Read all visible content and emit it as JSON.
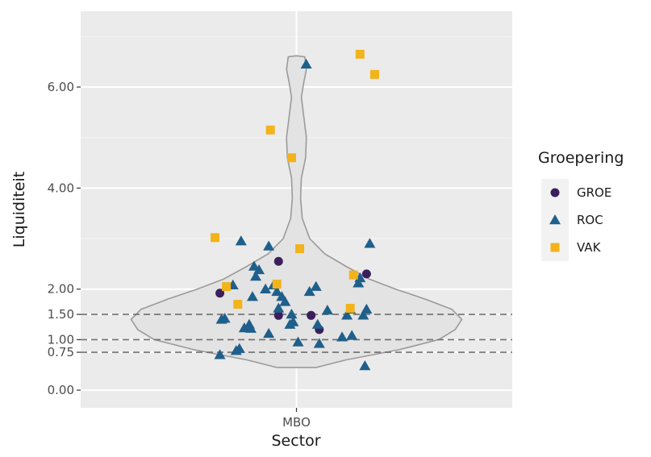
{
  "chart_data": {
    "type": "violin-jitter",
    "xlabel": "Sector",
    "ylabel": "Liquiditeit",
    "categories": [
      "MBO"
    ],
    "ylim": [
      -0.35,
      7.5
    ],
    "y_ticks": [
      {
        "value": 0.0,
        "label": "0.00"
      },
      {
        "value": 0.75,
        "label": "0.75"
      },
      {
        "value": 1.0,
        "label": "1.00"
      },
      {
        "value": 1.5,
        "label": "1.50"
      },
      {
        "value": 2.0,
        "label": "2.00"
      },
      {
        "value": 4.0,
        "label": "4.00"
      },
      {
        "value": 6.0,
        "label": "6.00"
      }
    ],
    "reference_lines": [
      0.75,
      1.0,
      1.5
    ],
    "grid": true,
    "legend": {
      "title": "Groepering",
      "placement": "right",
      "entries": [
        {
          "label": "GROE",
          "shape": "circle",
          "color": "#3b1f5c"
        },
        {
          "label": "ROC",
          "shape": "triangle",
          "color": "#1f5f8b"
        },
        {
          "label": "VAK",
          "shape": "square",
          "color": "#f2b31b"
        }
      ]
    },
    "violin": [
      {
        "y": 0.45,
        "w": 0.12
      },
      {
        "y": 0.6,
        "w": 0.3
      },
      {
        "y": 0.8,
        "w": 0.62
      },
      {
        "y": 1.0,
        "w": 0.86
      },
      {
        "y": 1.2,
        "w": 0.96
      },
      {
        "y": 1.4,
        "w": 1.0
      },
      {
        "y": 1.6,
        "w": 0.94
      },
      {
        "y": 1.8,
        "w": 0.78
      },
      {
        "y": 2.0,
        "w": 0.6
      },
      {
        "y": 2.2,
        "w": 0.44
      },
      {
        "y": 2.45,
        "w": 0.3
      },
      {
        "y": 2.7,
        "w": 0.17
      },
      {
        "y": 3.0,
        "w": 0.08
      },
      {
        "y": 3.4,
        "w": 0.035
      },
      {
        "y": 3.8,
        "w": 0.025
      },
      {
        "y": 4.2,
        "w": 0.03
      },
      {
        "y": 4.6,
        "w": 0.055
      },
      {
        "y": 5.0,
        "w": 0.06
      },
      {
        "y": 5.4,
        "w": 0.045
      },
      {
        "y": 5.8,
        "w": 0.03
      },
      {
        "y": 6.1,
        "w": 0.045
      },
      {
        "y": 6.35,
        "w": 0.06
      },
      {
        "y": 6.6,
        "w": 0.05
      },
      {
        "y": 6.62,
        "w": 0.0
      }
    ],
    "series": [
      {
        "name": "GROE",
        "points": [
          {
            "x": -0.47,
            "y": 1.92
          },
          {
            "x": -0.11,
            "y": 1.48
          },
          {
            "x": -0.11,
            "y": 2.55
          },
          {
            "x": 0.09,
            "y": 1.48
          },
          {
            "x": 0.14,
            "y": 1.2
          },
          {
            "x": 0.43,
            "y": 2.3
          }
        ]
      },
      {
        "name": "ROC",
        "points": [
          {
            "x": -0.47,
            "y": 0.7
          },
          {
            "x": -0.46,
            "y": 1.4
          },
          {
            "x": -0.44,
            "y": 1.42
          },
          {
            "x": -0.39,
            "y": 2.08
          },
          {
            "x": -0.37,
            "y": 0.78
          },
          {
            "x": -0.35,
            "y": 0.82
          },
          {
            "x": -0.34,
            "y": 2.95
          },
          {
            "x": -0.32,
            "y": 1.23
          },
          {
            "x": -0.29,
            "y": 1.3
          },
          {
            "x": -0.28,
            "y": 1.22
          },
          {
            "x": -0.27,
            "y": 1.85
          },
          {
            "x": -0.26,
            "y": 2.45
          },
          {
            "x": -0.25,
            "y": 2.25
          },
          {
            "x": -0.23,
            "y": 2.38
          },
          {
            "x": -0.19,
            "y": 2.0
          },
          {
            "x": -0.17,
            "y": 1.12
          },
          {
            "x": -0.17,
            "y": 2.85
          },
          {
            "x": -0.14,
            "y": 2.08
          },
          {
            "x": -0.12,
            "y": 1.95
          },
          {
            "x": -0.11,
            "y": 1.62
          },
          {
            "x": -0.09,
            "y": 1.85
          },
          {
            "x": -0.07,
            "y": 1.75
          },
          {
            "x": -0.04,
            "y": 1.3
          },
          {
            "x": -0.03,
            "y": 1.5
          },
          {
            "x": -0.02,
            "y": 1.35
          },
          {
            "x": 0.01,
            "y": 0.95
          },
          {
            "x": 0.06,
            "y": 6.45
          },
          {
            "x": 0.08,
            "y": 1.95
          },
          {
            "x": 0.12,
            "y": 2.05
          },
          {
            "x": 0.13,
            "y": 1.3
          },
          {
            "x": 0.14,
            "y": 0.92
          },
          {
            "x": 0.19,
            "y": 1.58
          },
          {
            "x": 0.28,
            "y": 1.05
          },
          {
            "x": 0.31,
            "y": 1.48
          },
          {
            "x": 0.33,
            "y": 1.6
          },
          {
            "x": 0.34,
            "y": 1.08
          },
          {
            "x": 0.38,
            "y": 2.12
          },
          {
            "x": 0.39,
            "y": 2.22
          },
          {
            "x": 0.41,
            "y": 1.48
          },
          {
            "x": 0.42,
            "y": 0.48
          },
          {
            "x": 0.43,
            "y": 1.6
          },
          {
            "x": 0.45,
            "y": 2.9
          }
        ]
      },
      {
        "name": "VAK",
        "points": [
          {
            "x": -0.5,
            "y": 3.02
          },
          {
            "x": -0.43,
            "y": 2.05
          },
          {
            "x": -0.36,
            "y": 1.7
          },
          {
            "x": -0.16,
            "y": 5.15
          },
          {
            "x": -0.12,
            "y": 2.1
          },
          {
            "x": -0.03,
            "y": 4.6
          },
          {
            "x": 0.02,
            "y": 2.8
          },
          {
            "x": 0.33,
            "y": 1.62
          },
          {
            "x": 0.35,
            "y": 2.28
          },
          {
            "x": 0.39,
            "y": 6.65
          },
          {
            "x": 0.48,
            "y": 6.25
          }
        ]
      }
    ]
  }
}
